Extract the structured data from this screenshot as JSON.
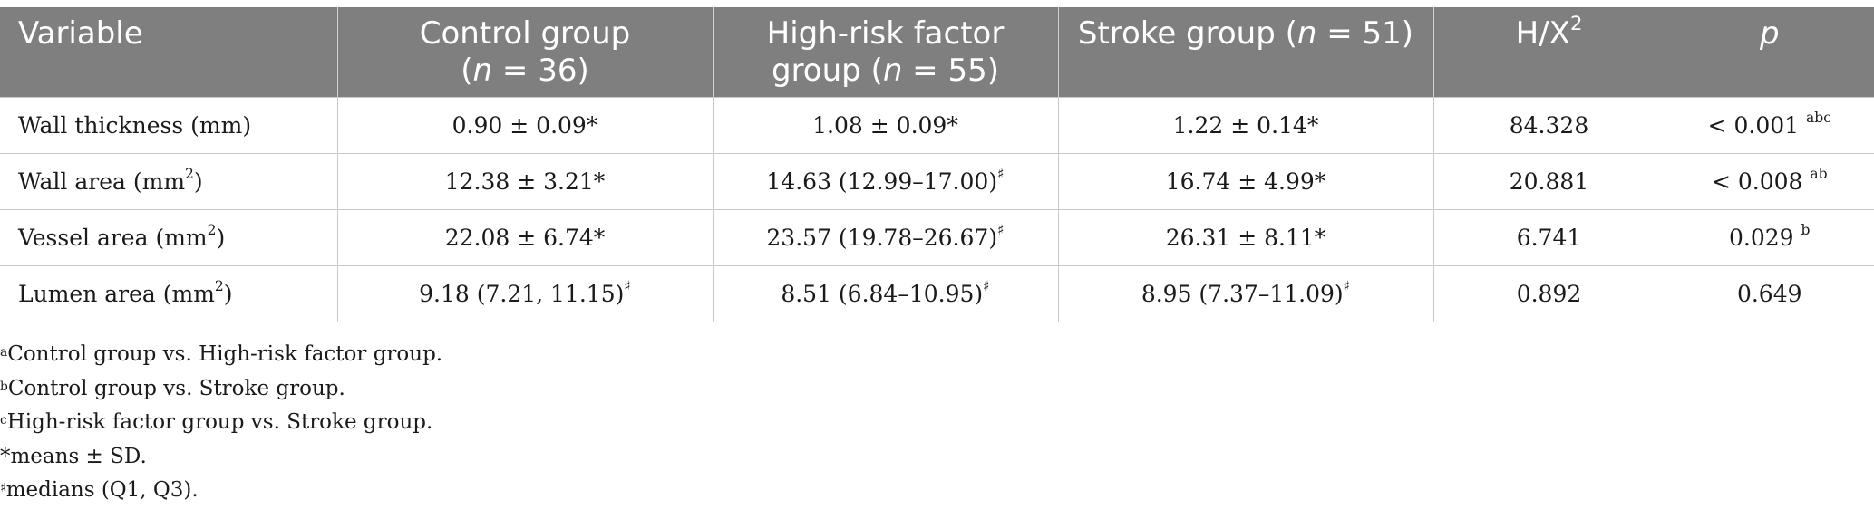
{
  "headers": {
    "variable": "Variable",
    "control_line1": "Control group",
    "control_n_prefix": "(",
    "control_n_var": "n",
    "control_n_suffix": " = 36)",
    "highrisk_line1": "High-risk factor",
    "highrisk_line2_prefix": "group (",
    "highrisk_n_var": "n",
    "highrisk_n_suffix": " = 55)",
    "stroke_prefix": "Stroke group (",
    "stroke_n_var": "n",
    "stroke_n_suffix": " = 51)",
    "hx_base": "H/X",
    "hx_sup": "2",
    "p": "p"
  },
  "rows": [
    {
      "variable": "Wall thickness (mm)",
      "var_sup": "",
      "var_suffix": "",
      "control": "0.90 ± 0.09*",
      "control_sup": "",
      "highrisk": "1.08 ± 0.09*",
      "highrisk_sup": "",
      "stroke": "1.22 ± 0.14*",
      "stroke_sup": "",
      "hx": "84.328",
      "p": "< 0.001 ",
      "p_sup": "abc"
    },
    {
      "variable": "Wall area (mm",
      "var_sup": "2",
      "var_suffix": ")",
      "control": "12.38 ± 3.21*",
      "control_sup": "",
      "highrisk": "14.63 (12.99–17.00)",
      "highrisk_sup": "♯",
      "stroke": "16.74 ± 4.99*",
      "stroke_sup": "",
      "hx": "20.881",
      "p": "< 0.008 ",
      "p_sup": "ab"
    },
    {
      "variable": "Vessel area (mm",
      "var_sup": "2",
      "var_suffix": ")",
      "control": "22.08 ± 6.74*",
      "control_sup": "",
      "highrisk": "23.57 (19.78–26.67)",
      "highrisk_sup": "♯",
      "stroke": "26.31 ± 8.11*",
      "stroke_sup": "",
      "hx": "6.741",
      "p": "0.029 ",
      "p_sup": "b"
    },
    {
      "variable": "Lumen area (mm",
      "var_sup": "2",
      "var_suffix": ")",
      "control": "9.18 (7.21, 11.15)",
      "control_sup": "♯",
      "highrisk": "8.51 (6.84–10.95)",
      "highrisk_sup": "♯",
      "stroke": "8.95 (7.37–11.09)",
      "stroke_sup": "♯",
      "hx": "0.892",
      "p": "0.649",
      "p_sup": ""
    }
  ],
  "notes": [
    {
      "mark": "a",
      "text": "Control group vs. High-risk factor group."
    },
    {
      "mark": "b",
      "text": "Control group vs. Stroke group."
    },
    {
      "mark": "c",
      "text": "High-risk factor group vs. Stroke group."
    },
    {
      "mark": "",
      "text": "*means ± SD."
    },
    {
      "mark": "♯",
      "text": "medians (Q1, Q3)."
    }
  ]
}
